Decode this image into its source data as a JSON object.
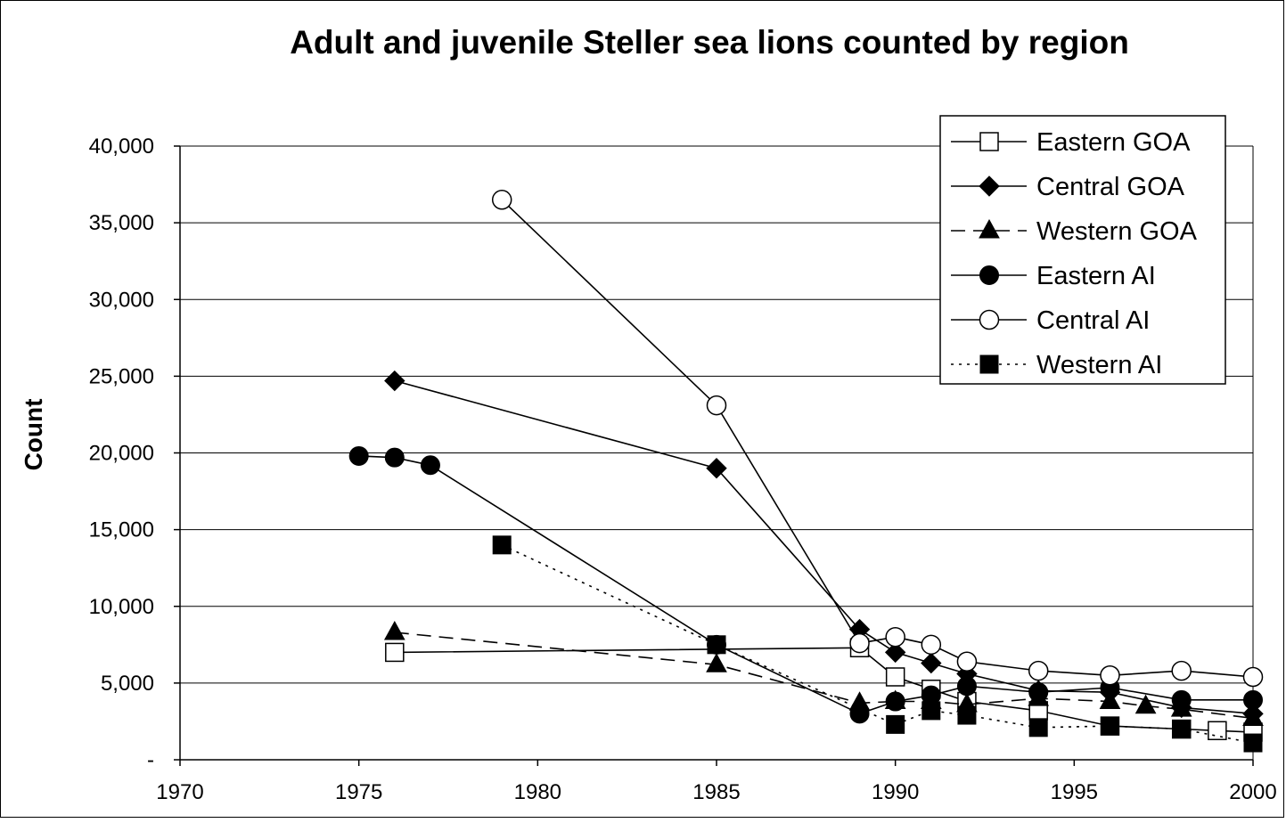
{
  "chart_data": {
    "type": "line",
    "title": "Adult and juvenile Steller sea lions counted by region",
    "xlabel": "",
    "ylabel": "Count",
    "xlim": [
      1970,
      2000
    ],
    "ylim": [
      0,
      40000
    ],
    "xticks": [
      1970,
      1975,
      1980,
      1985,
      1990,
      1995,
      2000
    ],
    "yticks": [
      0,
      5000,
      10000,
      15000,
      20000,
      25000,
      30000,
      35000,
      40000
    ],
    "ytick_labels": [
      "-",
      "5,000",
      "10,000",
      "15,000",
      "20,000",
      "25,000",
      "30,000",
      "35,000",
      "40,000"
    ],
    "grid": "horizontal",
    "legend_position": "top-right",
    "series": [
      {
        "name": "Eastern GOA",
        "marker": "square-open",
        "line": "solid",
        "x": [
          1976,
          1989,
          1990,
          1991,
          1992,
          1994,
          1996,
          1998,
          1999,
          2000
        ],
        "y": [
          7000,
          7300,
          5400,
          4600,
          3800,
          3200,
          2200,
          2000,
          1900,
          1800
        ]
      },
      {
        "name": "Central GOA",
        "marker": "diamond-filled",
        "line": "solid",
        "x": [
          1976,
          1985,
          1989,
          1990,
          1991,
          1992,
          1994,
          1996,
          1998,
          2000
        ],
        "y": [
          24700,
          19000,
          8500,
          7000,
          6300,
          5600,
          4500,
          4400,
          3400,
          3000
        ]
      },
      {
        "name": "Western GOA",
        "marker": "triangle-filled",
        "line": "dashed",
        "x": [
          1976,
          1985,
          1989,
          1990,
          1991,
          1992,
          1994,
          1996,
          1997,
          1998,
          2000
        ],
        "y": [
          8300,
          6200,
          3700,
          3800,
          3800,
          3600,
          4000,
          3800,
          3500,
          3300,
          2700
        ]
      },
      {
        "name": "Eastern AI",
        "marker": "circle-filled",
        "line": "solid",
        "x": [
          1975,
          1976,
          1977,
          1985,
          1989,
          1990,
          1991,
          1992,
          1994,
          1996,
          1998,
          2000
        ],
        "y": [
          19800,
          19700,
          19200,
          7500,
          3000,
          3800,
          4200,
          4800,
          4400,
          4700,
          3900,
          3900
        ]
      },
      {
        "name": "Central AI",
        "marker": "circle-open",
        "line": "solid",
        "x": [
          1979,
          1985,
          1989,
          1990,
          1991,
          1992,
          1994,
          1996,
          1998,
          2000
        ],
        "y": [
          36500,
          23100,
          7600,
          8000,
          7500,
          6400,
          5800,
          5500,
          5800,
          5400
        ]
      },
      {
        "name": "Western AI",
        "marker": "square-filled",
        "line": "dotted",
        "x": [
          1979,
          1985,
          1990,
          1991,
          1992,
          1994,
          1996,
          1998,
          2000
        ],
        "y": [
          14000,
          7500,
          2300,
          3200,
          2900,
          2100,
          2200,
          2000,
          1100
        ]
      }
    ]
  }
}
